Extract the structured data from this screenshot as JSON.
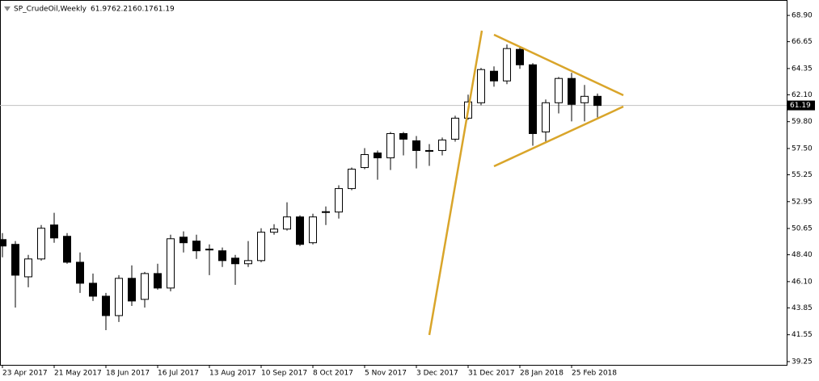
{
  "chart_data": {
    "type": "candlestick",
    "title": "SP_CrudeOil,Weekly",
    "categories": [
      "23 Apr 2017",
      null,
      null,
      null,
      "21 May 2017",
      null,
      null,
      null,
      "18 Jun 2017",
      null,
      null,
      null,
      "16 Jul 2017",
      null,
      null,
      null,
      "13 Aug 2017",
      null,
      null,
      null,
      "10 Sep 2017",
      null,
      null,
      null,
      "8 Oct 2017",
      null,
      null,
      null,
      "5 Nov 2017",
      null,
      null,
      null,
      "3 Dec 2017",
      null,
      null,
      null,
      "31 Dec 2017",
      null,
      null,
      null,
      "28 Jan 2018",
      null,
      null,
      null,
      "25 Feb 2018",
      null,
      null
    ],
    "open": [
      49.7,
      49.29,
      46.51,
      48.04,
      50.95,
      49.98,
      47.76,
      45.96,
      44.85,
      43.19,
      46.38,
      44.58,
      46.79,
      45.55,
      49.91,
      49.57,
      48.88,
      48.74,
      48.11,
      47.63,
      47.9,
      50.33,
      50.6,
      51.64,
      49.43,
      52.06,
      52.06,
      54.07,
      55.87,
      57.12,
      56.7,
      58.78,
      58.16,
      57.33,
      57.33,
      58.3,
      60.1,
      61.42,
      64.12,
      63.29,
      65.99,
      64.67,
      58.92,
      61.42,
      63.5,
      61.42,
      61.97
    ],
    "high": [
      50.26,
      49.57,
      48.39,
      50.95,
      51.99,
      50.26,
      48.6,
      46.79,
      45.13,
      46.65,
      47.49,
      46.93,
      47.63,
      50.12,
      50.4,
      50.12,
      49.29,
      49.02,
      48.39,
      49.57,
      50.67,
      51.02,
      52.89,
      51.78,
      51.92,
      52.54,
      54.35,
      55.87,
      57.53,
      57.33,
      58.92,
      58.92,
      58.57,
      57.88,
      58.44,
      60.31,
      62.11,
      64.4,
      64.53,
      66.41,
      66.27,
      64.81,
      61.7,
      63.63,
      63.98,
      62.94,
      62.21
    ],
    "low": [
      48.18,
      43.88,
      45.62,
      47.9,
      49.43,
      47.63,
      45.13,
      44.44,
      41.94,
      42.64,
      44.02,
      43.88,
      45.41,
      45.27,
      48.6,
      48.04,
      46.65,
      47.35,
      45.82,
      47.35,
      47.76,
      50.12,
      50.47,
      49.15,
      49.29,
      50.95,
      51.5,
      53.93,
      55.73,
      54.83,
      55.66,
      56.91,
      55.8,
      56.01,
      56.91,
      58.09,
      59.96,
      61.21,
      62.8,
      63.01,
      64.33,
      57.74,
      58.09,
      60.51,
      59.82,
      59.82,
      60.17
    ],
    "close": [
      49.15,
      46.65,
      48.04,
      50.67,
      49.84,
      47.76,
      45.96,
      44.85,
      43.19,
      46.38,
      44.44,
      46.79,
      45.55,
      49.77,
      49.43,
      48.74,
      48.84,
      47.9,
      47.63,
      47.9,
      50.33,
      50.6,
      51.64,
      49.29,
      51.64,
      52.09,
      54.07,
      55.73,
      56.98,
      56.7,
      58.78,
      58.3,
      57.33,
      57.3,
      58.23,
      60.1,
      61.49,
      64.26,
      63.29,
      66.06,
      64.67,
      58.78,
      61.42,
      63.5,
      61.28,
      61.97,
      61.19
    ],
    "up_color": "#ffffff",
    "down_color": "#000000",
    "ylim": [
      38.97,
      70.22
    ],
    "yticks": [
      {
        "value": 68.9,
        "label": "68.90"
      },
      66.65,
      64.35,
      {
        "value": 62.1,
        "label": "62.10"
      },
      {
        "value": 59.8,
        "label": "59.80"
      },
      {
        "value": 57.5,
        "label": "57.50"
      },
      55.25,
      52.95,
      50.65,
      {
        "value": 48.4,
        "label": "48.40"
      },
      {
        "value": 46.1,
        "label": "46.10"
      },
      43.85,
      41.55,
      39.25
    ]
  }
}
